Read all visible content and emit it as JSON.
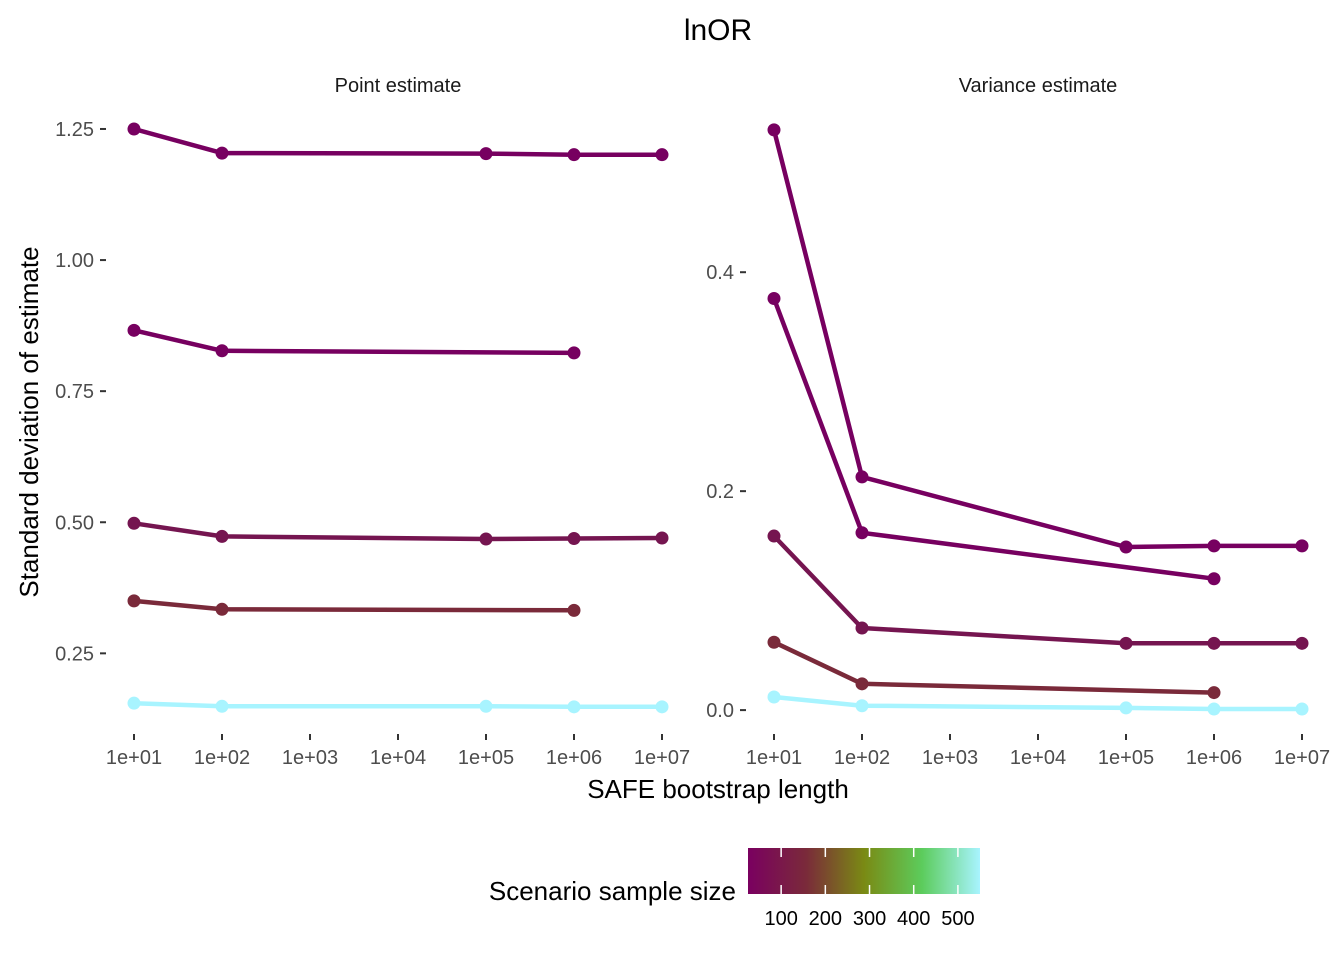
{
  "chart_data": {
    "type": "line",
    "title": "lnOR",
    "xlabel": "SAFE bootstrap length",
    "ylabel": "Standard deviation of estimate",
    "x_scale": "log10",
    "x_ticks": [
      10,
      100,
      1000,
      10000,
      100000,
      1000000,
      10000000
    ],
    "x_tick_labels": [
      "1e+01",
      "1e+02",
      "1e+03",
      "1e+04",
      "1e+05",
      "1e+06",
      "1e+07"
    ],
    "grid": false,
    "legend": {
      "title": "Scenario sample size",
      "type": "colorbar",
      "placement": "bottom",
      "ticks": [
        100,
        200,
        300,
        400,
        500
      ],
      "tick_labels": [
        "100",
        "200",
        "300",
        "400",
        "500"
      ],
      "range": [
        25,
        550
      ],
      "colors": [
        "#7a0060",
        "#7a2a3a",
        "#7a8a14",
        "#5ccc5c",
        "#a8f4ff"
      ]
    },
    "panels": [
      {
        "title": "Point estimate",
        "ylim": [
          0.1,
          1.29
        ],
        "y_ticks": [
          0.25,
          0.5,
          0.75,
          1.0,
          1.25
        ],
        "y_tick_labels": [
          "0.25",
          "0.50",
          "0.75",
          "1.00",
          "1.25"
        ],
        "series": [
          {
            "color": "#770060",
            "x": [
              10,
              100,
              100000,
              1000000,
              10000000
            ],
            "y": [
              1.25,
              1.204,
              1.203,
              1.201,
              1.201
            ]
          },
          {
            "color": "#770060",
            "x": [
              10,
              100,
              1000000
            ],
            "y": [
              0.866,
              0.827,
              0.823
            ]
          },
          {
            "color": "#751550",
            "x": [
              10,
              100,
              100000,
              1000000,
              10000000
            ],
            "y": [
              0.498,
              0.473,
              0.468,
              0.469,
              0.47
            ]
          },
          {
            "color": "#7a2a3a",
            "x": [
              10,
              100,
              1000000
            ],
            "y": [
              0.35,
              0.334,
              0.332
            ]
          },
          {
            "color": "#a8f4ff",
            "x": [
              10,
              100,
              100000,
              1000000,
              10000000
            ],
            "y": [
              0.155,
              0.149,
              0.149,
              0.148,
              0.148
            ]
          }
        ]
      },
      {
        "title": "Variance estimate",
        "ylim": [
          -0.02,
          0.55
        ],
        "y_ticks": [
          0.0,
          0.2,
          0.4
        ],
        "y_tick_labels": [
          "0.0",
          "0.2",
          "0.4"
        ],
        "series": [
          {
            "color": "#770060",
            "x": [
              10,
              100,
              100000,
              1000000,
              10000000
            ],
            "y": [
              0.53,
              0.213,
              0.149,
              0.15,
              0.15
            ]
          },
          {
            "color": "#770060",
            "x": [
              10,
              100,
              1000000
            ],
            "y": [
              0.376,
              0.162,
              0.12
            ]
          },
          {
            "color": "#751550",
            "x": [
              10,
              100,
              100000,
              1000000,
              10000000
            ],
            "y": [
              0.159,
              0.075,
              0.061,
              0.061,
              0.061
            ]
          },
          {
            "color": "#7a2a3a",
            "x": [
              10,
              100,
              1000000
            ],
            "y": [
              0.062,
              0.024,
              0.016
            ]
          },
          {
            "color": "#a8f4ff",
            "x": [
              10,
              100,
              100000,
              1000000,
              10000000
            ],
            "y": [
              0.012,
              0.004,
              0.002,
              0.001,
              0.001
            ]
          }
        ]
      }
    ]
  }
}
